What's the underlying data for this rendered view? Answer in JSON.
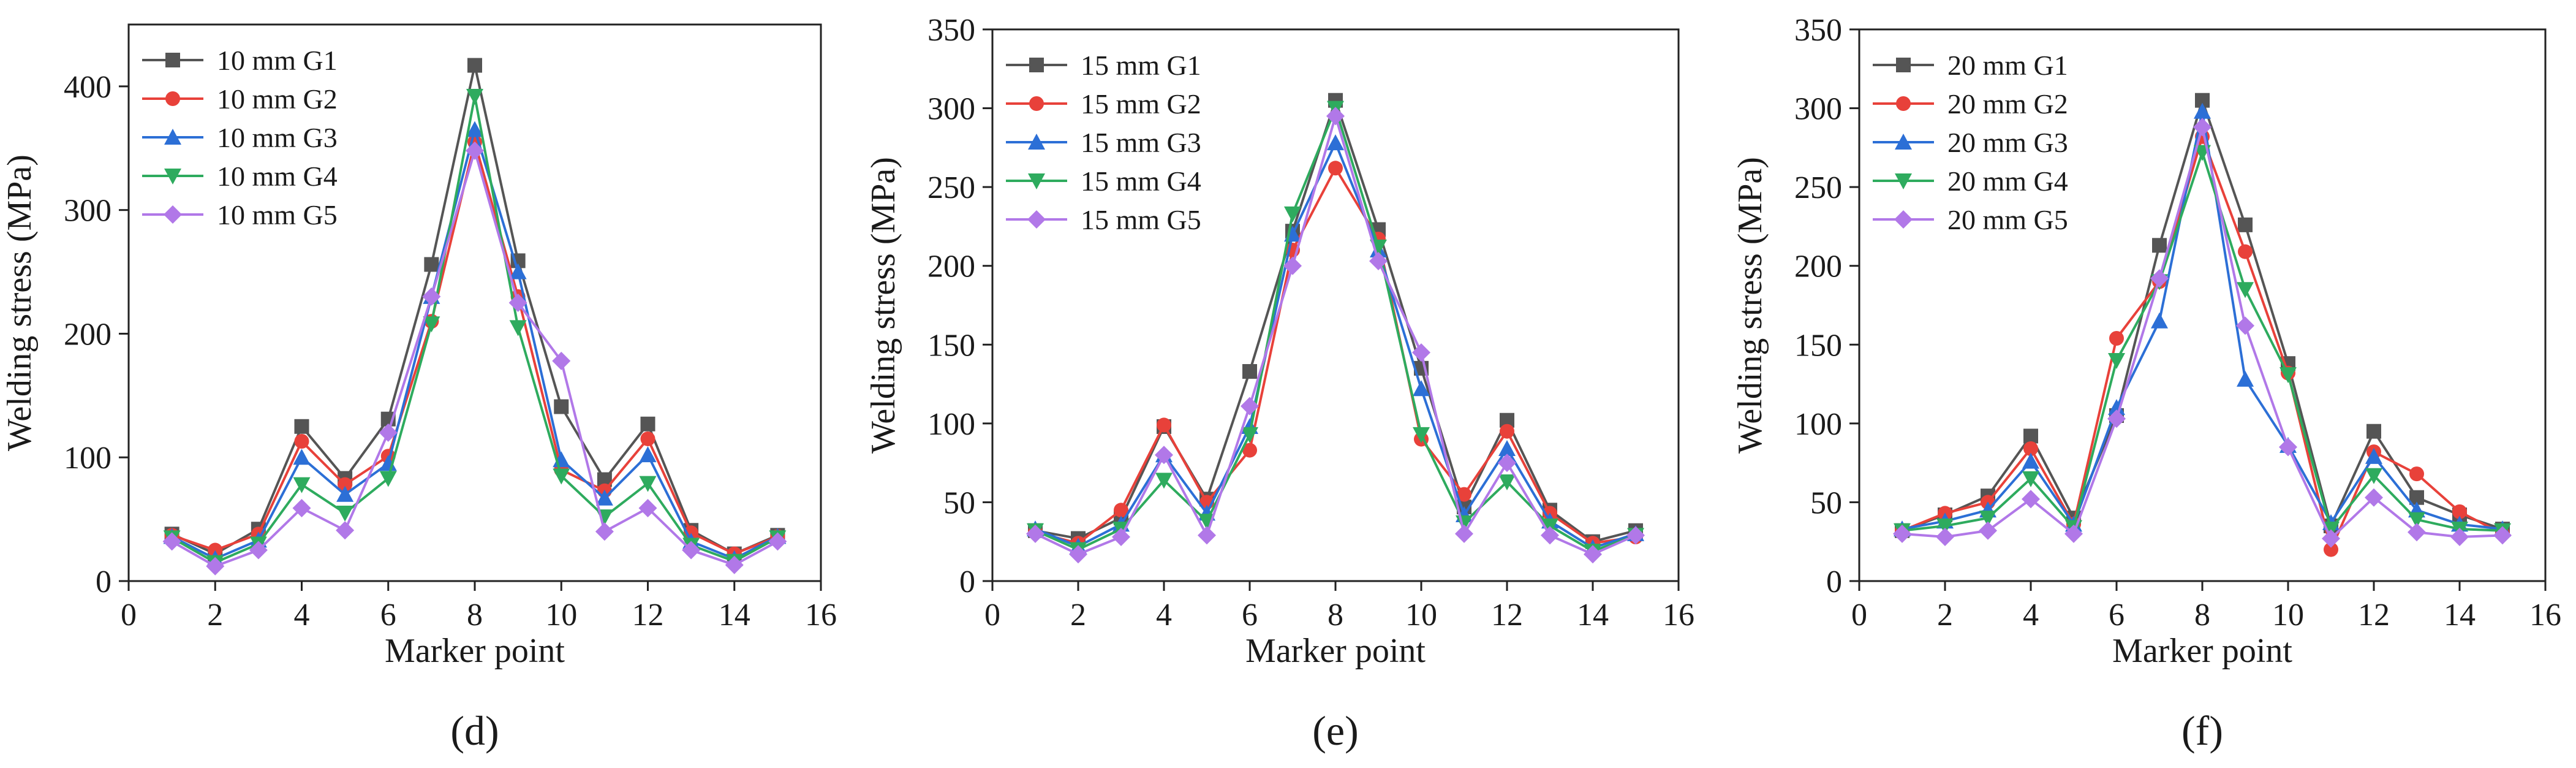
{
  "chart_data": [
    {
      "type": "line",
      "panel_label": "(d)",
      "xlabel": "Marker point",
      "ylabel": "Welding stress (MPa)",
      "xlim": [
        0,
        16
      ],
      "ylim": [
        0,
        450
      ],
      "xticks": [
        0,
        2,
        4,
        6,
        8,
        10,
        12,
        14,
        16
      ],
      "yticks": [
        0,
        100,
        200,
        300,
        400
      ],
      "legend_position": "top-left",
      "x": [
        1,
        2,
        3,
        4,
        5,
        6,
        7,
        8,
        9,
        10,
        11,
        12,
        13,
        14,
        15
      ],
      "series": [
        {
          "name": "10 mm G1",
          "color": "#555555",
          "marker": "square",
          "values": [
            38,
            22,
            42,
            125,
            83,
            131,
            256,
            417,
            259,
            141,
            82,
            127,
            41,
            22,
            37
          ]
        },
        {
          "name": "10 mm G2",
          "color": "#e8413a",
          "marker": "circle",
          "values": [
            37,
            25,
            38,
            113,
            78,
            101,
            210,
            355,
            230,
            90,
            73,
            115,
            39,
            22,
            36
          ]
        },
        {
          "name": "10 mm G3",
          "color": "#2c6fd6",
          "marker": "triangle-up",
          "values": [
            36,
            18,
            33,
            100,
            70,
            95,
            230,
            365,
            250,
            98,
            67,
            102,
            32,
            18,
            36
          ]
        },
        {
          "name": "10 mm G4",
          "color": "#2eab5e",
          "marker": "triangle-down",
          "values": [
            35,
            15,
            30,
            78,
            55,
            83,
            208,
            392,
            205,
            85,
            52,
            79,
            29,
            16,
            35
          ]
        },
        {
          "name": "10 mm G5",
          "color": "#b178e8",
          "marker": "diamond",
          "values": [
            32,
            12,
            25,
            59,
            41,
            120,
            230,
            348,
            225,
            178,
            40,
            59,
            25,
            13,
            32
          ]
        }
      ]
    },
    {
      "type": "line",
      "panel_label": "(e)",
      "xlabel": "Marker point",
      "ylabel": "Welding stress (MPa)",
      "xlim": [
        0,
        16
      ],
      "ylim": [
        0,
        350
      ],
      "xticks": [
        0,
        2,
        4,
        6,
        8,
        10,
        12,
        14,
        16
      ],
      "yticks": [
        0,
        50,
        100,
        150,
        200,
        250,
        300,
        350
      ],
      "legend_position": "top-left",
      "x": [
        1,
        2,
        3,
        4,
        5,
        6,
        7,
        8,
        9,
        10,
        11,
        12,
        13,
        14,
        15
      ],
      "series": [
        {
          "name": "15 mm G1",
          "color": "#555555",
          "marker": "square",
          "values": [
            32,
            27,
            40,
            98,
            52,
            133,
            222,
            305,
            223,
            135,
            47,
            102,
            45,
            25,
            32
          ]
        },
        {
          "name": "15 mm G2",
          "color": "#e8413a",
          "marker": "circle",
          "values": [
            31,
            24,
            45,
            99,
            50,
            83,
            210,
            262,
            217,
            90,
            55,
            95,
            43,
            24,
            28
          ]
        },
        {
          "name": "15 mm G3",
          "color": "#2c6fd6",
          "marker": "triangle-up",
          "values": [
            33,
            22,
            36,
            80,
            43,
            98,
            220,
            278,
            210,
            122,
            42,
            84,
            38,
            21,
            30
          ]
        },
        {
          "name": "15 mm G4",
          "color": "#2eab5e",
          "marker": "triangle-down",
          "values": [
            32,
            20,
            33,
            64,
            38,
            93,
            233,
            300,
            212,
            93,
            37,
            63,
            35,
            19,
            29
          ]
        },
        {
          "name": "15 mm G5",
          "color": "#b178e8",
          "marker": "diamond",
          "values": [
            30,
            17,
            28,
            80,
            29,
            111,
            200,
            295,
            203,
            145,
            30,
            75,
            29,
            17,
            29
          ]
        }
      ]
    },
    {
      "type": "line",
      "panel_label": "(f)",
      "xlabel": "Marker point",
      "ylabel": "Welding stress (MPa)",
      "xlim": [
        0,
        16
      ],
      "ylim": [
        0,
        350
      ],
      "xticks": [
        0,
        2,
        4,
        6,
        8,
        10,
        12,
        14,
        16
      ],
      "yticks": [
        0,
        50,
        100,
        150,
        200,
        250,
        300,
        350
      ],
      "legend_position": "top-left",
      "x": [
        1,
        2,
        3,
        4,
        5,
        6,
        7,
        8,
        9,
        10,
        11,
        12,
        13,
        14,
        15
      ],
      "series": [
        {
          "name": "20 mm G1",
          "color": "#555555",
          "marker": "square",
          "values": [
            32,
            42,
            54,
            92,
            40,
            105,
            213,
            305,
            226,
            138,
            35,
            95,
            53,
            42,
            33
          ]
        },
        {
          "name": "20 mm G2",
          "color": "#e8413a",
          "marker": "circle",
          "values": [
            32,
            43,
            50,
            84,
            36,
            154,
            190,
            282,
            209,
            132,
            20,
            82,
            68,
            44,
            30
          ]
        },
        {
          "name": "20 mm G3",
          "color": "#2c6fd6",
          "marker": "triangle-up",
          "values": [
            33,
            38,
            45,
            76,
            36,
            110,
            165,
            298,
            128,
            86,
            37,
            79,
            45,
            36,
            33
          ]
        },
        {
          "name": "20 mm G4",
          "color": "#2eab5e",
          "marker": "triangle-down",
          "values": [
            32,
            35,
            40,
            65,
            34,
            140,
            190,
            272,
            185,
            131,
            33,
            67,
            39,
            33,
            32
          ]
        },
        {
          "name": "20 mm G5",
          "color": "#b178e8",
          "marker": "diamond",
          "values": [
            30,
            28,
            32,
            52,
            30,
            103,
            192,
            288,
            162,
            85,
            27,
            53,
            31,
            28,
            29
          ]
        }
      ]
    }
  ]
}
